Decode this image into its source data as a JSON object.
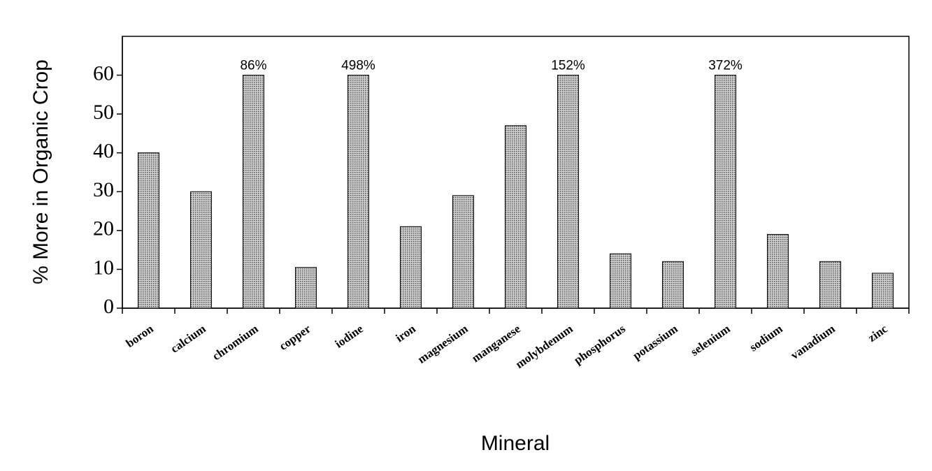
{
  "chart_data": {
    "type": "bar",
    "x_label": "Mineral",
    "y_label": "% More in Organic Crop",
    "categories": [
      "boron",
      "calcium",
      "chromium",
      "copper",
      "iodine",
      "iron",
      "magnesium",
      "manganese",
      "molybdenum",
      "phosphorus",
      "potassium",
      "selenium",
      "sodium",
      "vanadium",
      "zinc"
    ],
    "values": [
      40,
      30,
      86,
      10.5,
      498,
      21,
      29,
      47,
      152,
      14,
      12,
      372,
      19,
      12,
      9
    ],
    "value_labels": [
      null,
      null,
      "86%",
      null,
      "498%",
      null,
      null,
      null,
      "152%",
      null,
      null,
      "372%",
      null,
      null,
      null
    ],
    "color": "#a8a8a8",
    "ylim": [
      0,
      70
    ],
    "yticks": [
      0,
      10,
      20,
      30,
      40,
      50,
      60
    ],
    "axis_break": 60
  }
}
